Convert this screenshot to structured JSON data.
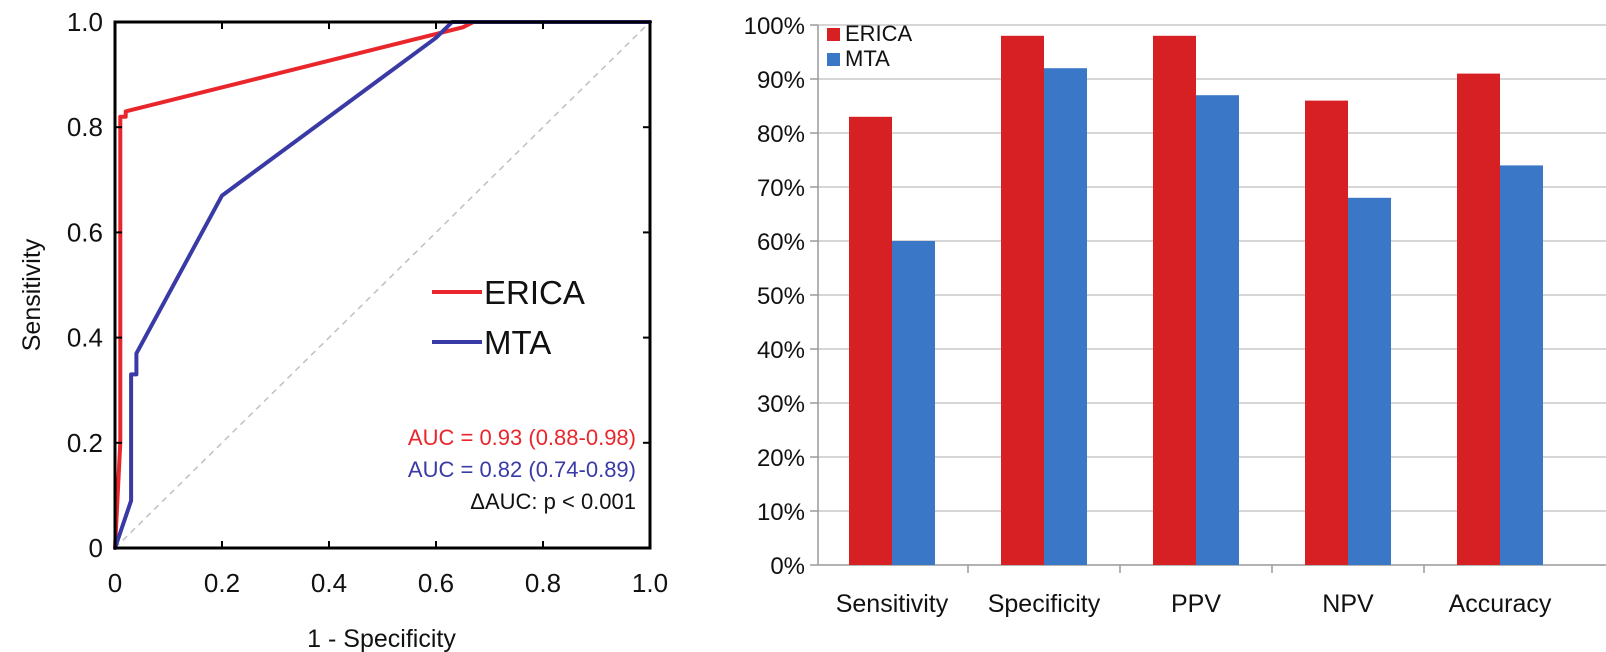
{
  "chart_data": [
    {
      "type": "line",
      "xlabel": "1 - Specificity",
      "ylabel": "Sensitivity",
      "xlim": [
        0,
        1.0
      ],
      "ylim": [
        0,
        1.0
      ],
      "xticks": [
        "0",
        "0.2",
        "0.4",
        "0.6",
        "0.8",
        "1.0"
      ],
      "yticks": [
        "0",
        "0.2",
        "0.4",
        "0.6",
        "0.8",
        "1.0"
      ],
      "legend_position": "center-right",
      "reference_line": {
        "x": [
          0,
          1
        ],
        "y": [
          0,
          1
        ],
        "style": "dashed",
        "color": "#c0c0c0"
      },
      "series": [
        {
          "name": "ERICA",
          "color": "#e8262b",
          "x": [
            0,
            0.01,
            0.01,
            0.02,
            0.02,
            0.65,
            0.67,
            1.0
          ],
          "y": [
            0,
            0.2,
            0.82,
            0.82,
            0.83,
            0.99,
            1.0,
            1.0
          ]
        },
        {
          "name": "MTA",
          "color": "#3a3aa6",
          "x": [
            0,
            0.03,
            0.03,
            0.04,
            0.04,
            0.2,
            0.6,
            0.63,
            1.0
          ],
          "y": [
            0,
            0.09,
            0.33,
            0.33,
            0.37,
            0.67,
            0.97,
            1.0,
            1.0
          ]
        }
      ],
      "annotations": [
        {
          "text": "AUC = 0.93 (0.88-0.98)",
          "color": "#e8262b"
        },
        {
          "text": "AUC = 0.82 (0.74-0.89)",
          "color": "#3a3aa6"
        },
        {
          "text": "ΔAUC: p < 0.001",
          "color": "#111111"
        }
      ]
    },
    {
      "type": "bar",
      "categories": [
        "Sensitivity",
        "Specificity",
        "PPV",
        "NPV",
        "Accuracy"
      ],
      "series": [
        {
          "name": "ERICA",
          "color": "#d62024",
          "values": [
            83,
            98,
            98,
            86,
            91
          ]
        },
        {
          "name": "MTA",
          "color": "#3a77c7",
          "values": [
            60,
            92,
            87,
            68,
            74
          ]
        }
      ],
      "ylim": [
        0,
        100
      ],
      "yticks": [
        "0%",
        "10%",
        "20%",
        "30%",
        "40%",
        "50%",
        "60%",
        "70%",
        "80%",
        "90%",
        "100%"
      ],
      "grid": true,
      "legend_position": "top-left"
    }
  ]
}
